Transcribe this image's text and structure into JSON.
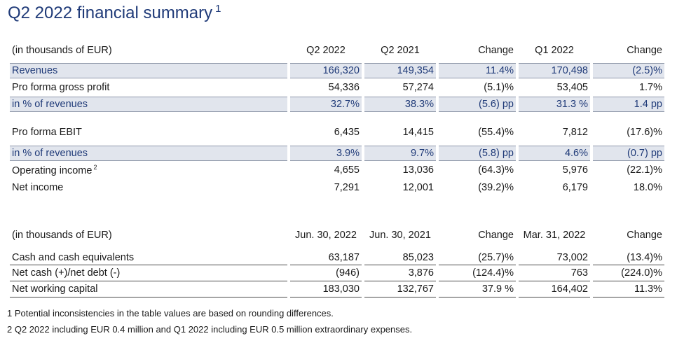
{
  "title": "Q2 2022 financial summary",
  "title_note": "1",
  "table1": {
    "header": [
      "(in thousands of EUR)",
      "Q2 2022",
      "Q2 2021",
      "Change",
      "Q1 2022",
      "Change"
    ],
    "rows": [
      {
        "label": "Revenues",
        "note": "",
        "values": [
          "166,320",
          "149,354",
          "11.4%",
          "170,498",
          "(2.5)%"
        ],
        "highlight": true
      },
      {
        "label": "Pro forma gross profit",
        "note": "",
        "values": [
          "54,336",
          "57,274",
          "(5.1)%",
          "53,405",
          "1.7%"
        ],
        "highlight": false
      },
      {
        "label": "in % of revenues",
        "note": "",
        "values": [
          "32.7%",
          "38.3%",
          "(5.6) pp",
          "31.3 %",
          "1.4 pp"
        ],
        "highlight": true
      },
      {
        "label": "Pro forma EBIT",
        "note": "",
        "values": [
          "6,435",
          "14,415",
          "(55.4)%",
          "7,812",
          "(17.6)%"
        ],
        "highlight": false
      },
      {
        "label": "in % of revenues",
        "note": "",
        "values": [
          "3.9%",
          "9.7%",
          "(5.8) pp",
          "4.6%",
          "(0.7) pp"
        ],
        "highlight": true
      },
      {
        "label": "Operating income",
        "note": "2",
        "values": [
          "4,655",
          "13,036",
          "(64.3)%",
          "5,976",
          "(22.1)%"
        ],
        "highlight": false
      },
      {
        "label": "Net income",
        "note": "",
        "values": [
          "7,291",
          "12,001",
          "(39.2)%",
          "6,179",
          "18.0%"
        ],
        "highlight": false
      }
    ]
  },
  "table2": {
    "header": [
      "(in thousands of EUR)",
      "Jun. 30, 2022",
      "Jun. 30, 2021",
      "Change",
      "Mar. 31, 2022",
      "Change"
    ],
    "rows": [
      {
        "label": "Cash and cash equivalents",
        "values": [
          "63,187",
          "85,023",
          "(25.7)%",
          "73,002",
          "(13.4)%"
        ]
      },
      {
        "label": "Net cash (+)/net debt (-)",
        "values": [
          "(946)",
          "3,876",
          "(124.4)%",
          "763",
          "(224.0)%"
        ]
      },
      {
        "label": "Net working capital",
        "values": [
          "183,030",
          "132,767",
          "37.9 %",
          "164,402",
          "11.3%"
        ]
      }
    ]
  },
  "footnotes": [
    "1 Potential inconsistencies in the table values are based on rounding differences.",
    "2 Q2 2022 including EUR 0.4 million and Q1 2022 including EUR 0.5 million extraordinary expenses."
  ],
  "colors": {
    "title": "#1f3a78",
    "highlight_bg": "#e1e5ed",
    "highlight_text": "#1f3a78"
  }
}
